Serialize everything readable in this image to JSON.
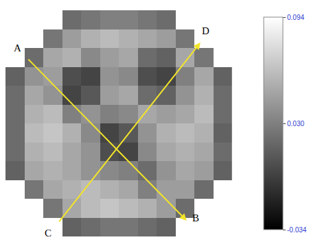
{
  "chart_data": {
    "type": "heatmap",
    "z": [
      [
        null,
        null,
        null,
        0.02,
        0.025,
        0.03,
        0.03,
        0.025,
        0.02,
        null,
        null,
        null
      ],
      [
        null,
        null,
        0.025,
        0.045,
        0.055,
        0.06,
        0.055,
        0.05,
        0.045,
        0.025,
        null,
        null
      ],
      [
        null,
        0.02,
        0.05,
        0.055,
        0.035,
        0.045,
        0.05,
        0.02,
        0.015,
        0.05,
        0.025,
        null
      ],
      [
        0.015,
        0.04,
        0.045,
        0.005,
        0.0,
        0.04,
        0.035,
        0.005,
        0.0,
        0.03,
        0.05,
        0.015
      ],
      [
        0.02,
        0.05,
        0.04,
        0.0,
        0.01,
        0.045,
        0.05,
        0.02,
        0.015,
        0.04,
        0.055,
        0.02
      ],
      [
        0.02,
        0.055,
        0.06,
        0.03,
        0.04,
        0.03,
        0.035,
        0.05,
        0.045,
        0.05,
        0.06,
        0.02
      ],
      [
        0.02,
        0.06,
        0.065,
        0.055,
        0.035,
        0.0,
        0.01,
        0.04,
        0.055,
        0.06,
        0.055,
        0.015
      ],
      [
        0.02,
        0.055,
        0.06,
        0.05,
        0.04,
        0.005,
        0.0,
        0.035,
        0.05,
        0.055,
        0.05,
        0.02
      ],
      [
        0.015,
        0.05,
        0.055,
        0.05,
        0.04,
        0.035,
        0.03,
        0.02,
        0.04,
        0.05,
        0.045,
        0.015
      ],
      [
        null,
        0.025,
        0.05,
        0.055,
        0.06,
        0.055,
        0.05,
        0.03,
        0.045,
        0.045,
        0.02,
        null
      ],
      [
        null,
        null,
        0.025,
        0.05,
        0.06,
        0.065,
        0.06,
        0.055,
        0.045,
        0.02,
        null,
        null
      ],
      [
        null,
        null,
        null,
        0.015,
        0.02,
        0.025,
        0.025,
        0.02,
        0.015,
        null,
        null,
        null
      ]
    ],
    "colorbar": {
      "range": [
        -0.034,
        0.094
      ],
      "ticks": [
        0.094,
        {
          "value": 0.03,
          "label": "0.030"
        },
        -0.034
      ]
    },
    "annotations": [
      "A",
      "B",
      "C",
      "D"
    ],
    "tick_labels": false
  }
}
